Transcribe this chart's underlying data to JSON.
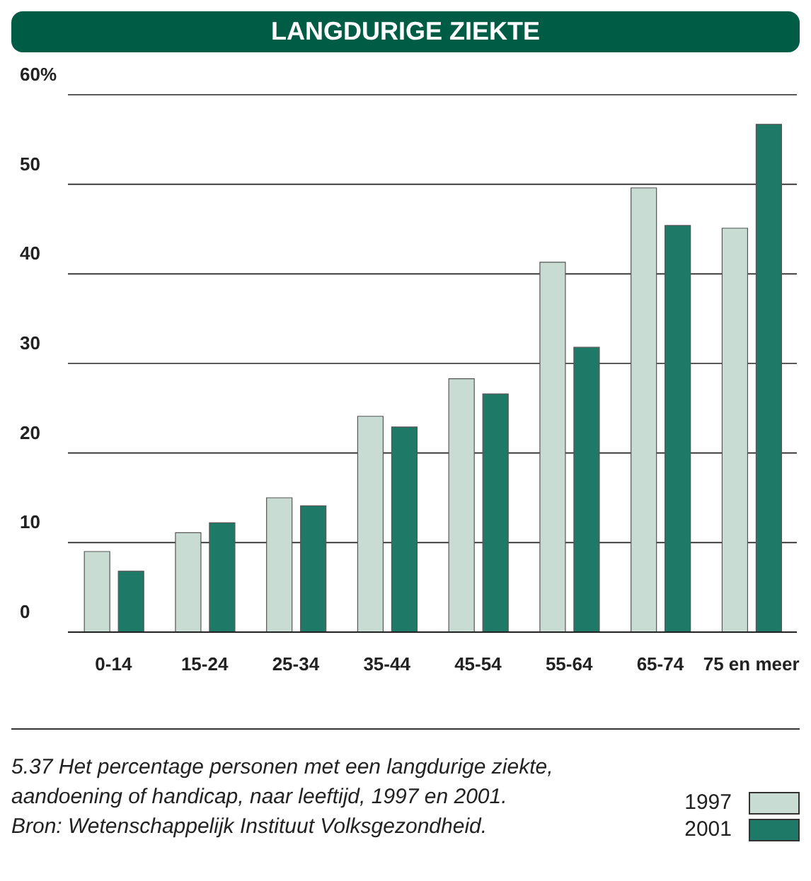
{
  "chart_data": {
    "type": "bar",
    "title": "LANGDURIGE ZIEKTE",
    "categories": [
      "0-14",
      "15-24",
      "25-34",
      "35-44",
      "45-54",
      "55-64",
      "65-74",
      "75 en meer"
    ],
    "series": [
      {
        "name": "1997",
        "color": "#c8dcd4",
        "values": [
          9.0,
          11.1,
          15.0,
          24.1,
          28.3,
          41.3,
          49.6,
          45.1
        ]
      },
      {
        "name": "2001",
        "color": "#1e7a66",
        "values": [
          6.8,
          12.2,
          14.1,
          22.9,
          26.6,
          31.8,
          45.4,
          56.7
        ]
      }
    ],
    "ylim": [
      0,
      60
    ],
    "yticks": [
      0,
      10,
      20,
      30,
      40,
      50,
      {
        "value": 60,
        "label": "60%"
      }
    ],
    "grid": "y",
    "legend": "bottom right",
    "annotations": [
      "5.37 Het percentage personen met een langdurige ziekte, aandoening of handicap, naar leeftijd, 1997 en 2001.",
      "Bron: Wetenschappelijk Instituut Volksgezondheid."
    ]
  }
}
